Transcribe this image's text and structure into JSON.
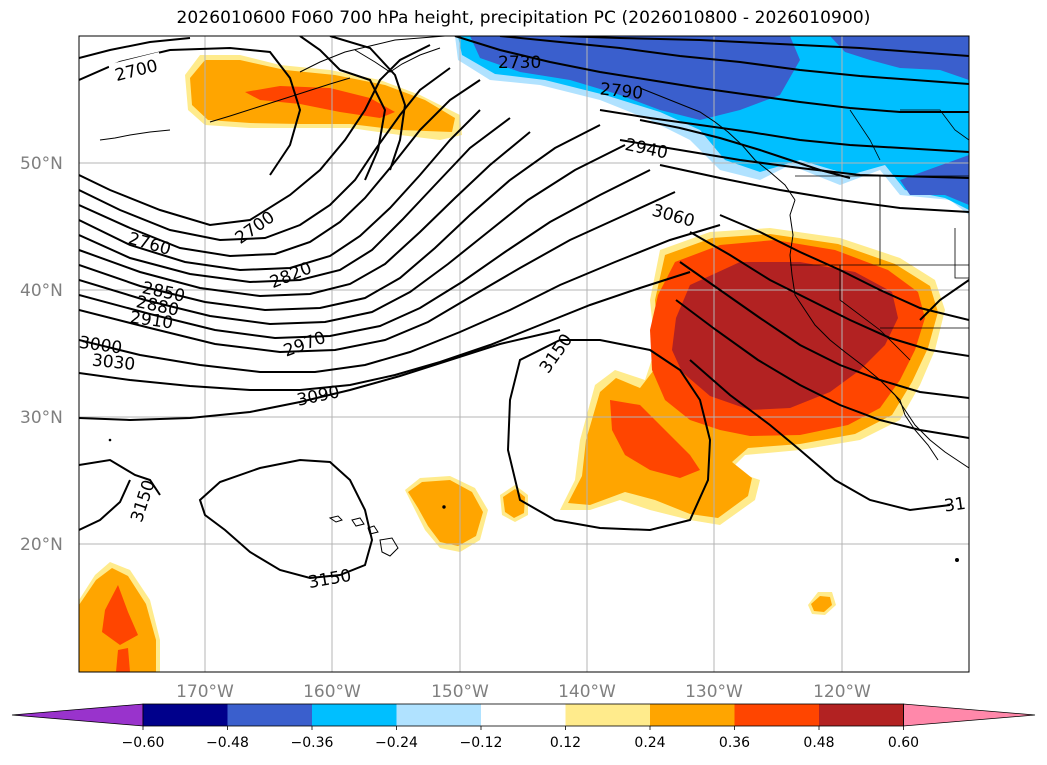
{
  "title": "2026010600 F060 700 hPa height, precipitation PC (2026010800 - 2026010900)",
  "map": {
    "lat_labels": [
      "50°N",
      "40°N",
      "30°N",
      "20°N"
    ],
    "lon_labels": [
      "170°W",
      "160°W",
      "150°W",
      "140°W",
      "130°W",
      "120°W"
    ],
    "contour_labels": [
      "2700",
      "2730",
      "2790",
      "2940",
      "3060",
      "2700",
      "2760",
      "2820",
      "2850",
      "2880",
      "2910",
      "2970",
      "3000",
      "3030",
      "3090",
      "3150",
      "3150",
      "3150",
      "31"
    ]
  },
  "colorbar": {
    "ticks": [
      "−0.60",
      "−0.48",
      "−0.36",
      "−0.24",
      "−0.12",
      "0.12",
      "0.24",
      "0.36",
      "0.48",
      "0.60"
    ],
    "colors": [
      "#9933cc",
      "#00008b",
      "#3a5fcd",
      "#00bfff",
      "#b0e2ff",
      "#ffffff",
      "#ffeb8c",
      "#ffa500",
      "#ff4500",
      "#b22222",
      "#ff88aa"
    ]
  }
}
